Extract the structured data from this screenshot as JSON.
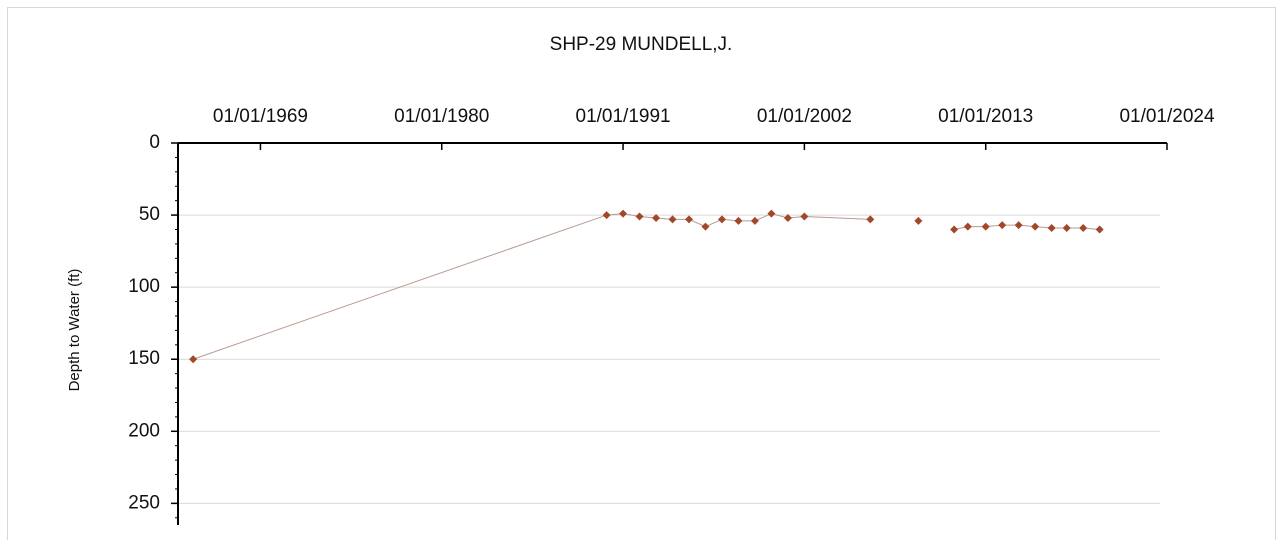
{
  "chart_data": {
    "type": "line",
    "title": "SHP-29  MUNDELL,J.",
    "y_label": "Depth to Water (ft)",
    "y_inverted": true,
    "x_axis_position": "top",
    "grid": true,
    "xlim": [
      "1964-01-01",
      "2024-01-01"
    ],
    "xticks": [
      {
        "value": "1969-01-01",
        "label": "01/01/1969"
      },
      {
        "value": "1980-01-01",
        "label": "01/01/1980"
      },
      {
        "value": "1991-01-01",
        "label": "01/01/1991"
      },
      {
        "value": "2002-01-01",
        "label": "01/01/2002"
      },
      {
        "value": "2013-01-01",
        "label": "01/01/2013"
      },
      {
        "value": "2024-01-01",
        "label": "01/01/2024"
      }
    ],
    "ylim": [
      0,
      265
    ],
    "yticks": [
      0,
      50,
      100,
      150,
      200,
      250
    ],
    "series": [
      {
        "name": "Depth to Water",
        "color": "#a3472a",
        "line_color": "#b89a90",
        "x": [
          "1964-12-01",
          "1990-01-01",
          "1991-01-01",
          "1992-01-01",
          "1993-01-01",
          "1994-01-01",
          "1995-01-01",
          "1996-01-01",
          "1997-01-01",
          "1998-01-01",
          "1999-01-01",
          "2000-01-01",
          "2001-01-01",
          "2002-01-01",
          "2006-01-01",
          null,
          "2008-12-01",
          null,
          "2011-02-01",
          "2011-12-01",
          "2013-01-01",
          "2014-01-01",
          "2015-01-01",
          "2016-01-01",
          "2017-01-01",
          "2017-12-01",
          "2018-12-01",
          "2019-12-01"
        ],
        "values": [
          150,
          50,
          49,
          51,
          52,
          53,
          53,
          58,
          53,
          54,
          54,
          49,
          52,
          51,
          53,
          null,
          54,
          null,
          60,
          58,
          58,
          57,
          57,
          58,
          59,
          59,
          59,
          60
        ]
      }
    ]
  }
}
